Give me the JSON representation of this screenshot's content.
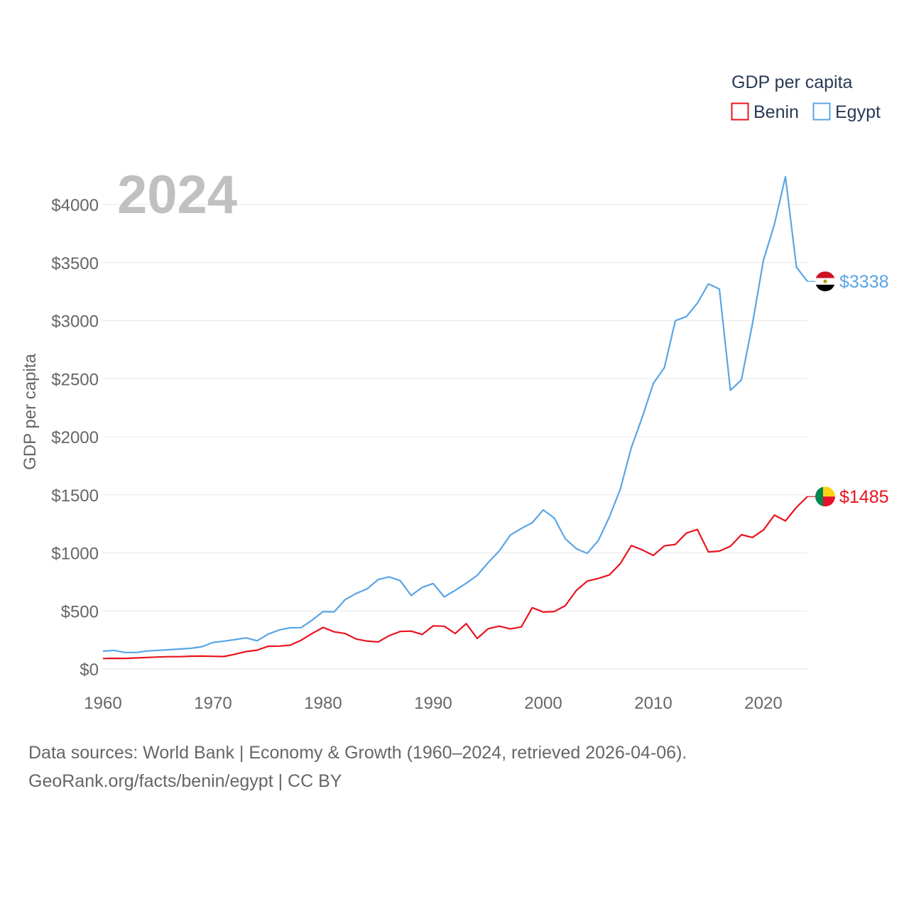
{
  "chart_data": {
    "type": "line",
    "title": "GDP per capita",
    "watermark_year": "2024",
    "ylabel": "GDP per capita",
    "xlabel": "",
    "xlim": [
      1960,
      2024
    ],
    "ylim": [
      0,
      4000
    ],
    "x_ticks": [
      1960,
      1970,
      1980,
      1990,
      2000,
      2010,
      2020
    ],
    "y_ticks": [
      0,
      500,
      1000,
      1500,
      2000,
      2500,
      3000,
      3500,
      4000
    ],
    "y_tick_labels": [
      "$0",
      "$500",
      "$1000",
      "$1500",
      "$2000",
      "$2500",
      "$3000",
      "$3500",
      "$4000"
    ],
    "x_tick_labels": [
      "1960",
      "1970",
      "1980",
      "1990",
      "2000",
      "2010",
      "2020"
    ],
    "legend": {
      "title": "GDP per capita",
      "position": "top-right",
      "entries": [
        "Benin",
        "Egypt"
      ]
    },
    "grid": true,
    "x": [
      1960,
      1961,
      1962,
      1963,
      1964,
      1965,
      1966,
      1967,
      1968,
      1969,
      1970,
      1971,
      1972,
      1973,
      1974,
      1975,
      1976,
      1977,
      1978,
      1979,
      1980,
      1981,
      1982,
      1983,
      1984,
      1985,
      1986,
      1987,
      1988,
      1989,
      1990,
      1991,
      1992,
      1993,
      1994,
      1995,
      1996,
      1997,
      1998,
      1999,
      2000,
      2001,
      2002,
      2003,
      2004,
      2005,
      2006,
      2007,
      2008,
      2009,
      2010,
      2011,
      2012,
      2013,
      2014,
      2015,
      2016,
      2017,
      2018,
      2019,
      2020,
      2021,
      2022,
      2023,
      2024
    ],
    "series": [
      {
        "name": "Benin",
        "color": "#e8141e",
        "end_label": "$1485",
        "flag": "benin",
        "values": [
          90,
          92,
          91,
          95,
          99,
          103,
          106,
          106,
          110,
          111,
          109,
          107,
          127,
          150,
          162,
          195,
          197,
          205,
          247,
          306,
          358,
          320,
          305,
          258,
          240,
          233,
          287,
          323,
          326,
          297,
          371,
          368,
          306,
          390,
          263,
          347,
          369,
          345,
          362,
          528,
          490,
          495,
          545,
          676,
          757,
          779,
          810,
          907,
          1063,
          1025,
          978,
          1060,
          1073,
          1170,
          1202,
          1008,
          1015,
          1056,
          1156,
          1133,
          1197,
          1325,
          1275,
          1392,
          1485
        ]
      },
      {
        "name": "Egypt",
        "color": "#5aa5e6",
        "end_label": "$3338",
        "flag": "egypt",
        "values": [
          153,
          160,
          142,
          142,
          155,
          160,
          166,
          172,
          178,
          192,
          229,
          240,
          253,
          268,
          243,
          300,
          336,
          355,
          356,
          420,
          495,
          492,
          597,
          650,
          690,
          770,
          793,
          760,
          633,
          703,
          736,
          621,
          677,
          738,
          807,
          917,
          1016,
          1152,
          1210,
          1260,
          1370,
          1300,
          1122,
          1036,
          996,
          1106,
          1308,
          1550,
          1907,
          2170,
          2460,
          2595,
          3000,
          3035,
          3150,
          3316,
          3272,
          2400,
          2490,
          2970,
          3520,
          3830,
          4240,
          3460,
          3338
        ]
      }
    ]
  },
  "footer": {
    "line1": "Data sources: World Bank | Economy & Growth (1960–2024, retrieved 2026-04-06).",
    "line2": "GeoRank.org/facts/benin/egypt | CC BY"
  }
}
